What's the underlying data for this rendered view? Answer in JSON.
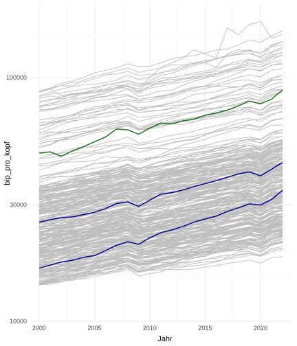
{
  "chart_data": {
    "type": "line",
    "xlabel": "Jahr",
    "ylabel": "bip_pro_kopf",
    "x_scale": "linear",
    "y_scale": "log",
    "xlim": [
      1999.2,
      2022.8
    ],
    "ylim": [
      10000,
      200000
    ],
    "x_ticks": [
      2000,
      2005,
      2010,
      2015,
      2020
    ],
    "x_tick_labels": [
      "2000",
      "2005",
      "2010",
      "2015",
      "2020"
    ],
    "y_ticks": [
      10000,
      30000,
      100000
    ],
    "y_tick_labels": [
      "10000",
      "30000",
      "100000"
    ],
    "grid": true,
    "legend": "none",
    "background_series_color": "#bebebe",
    "background_series_count": 300,
    "background_series_range": {
      "start_2000": [
        12800,
        88000
      ],
      "end_2022": [
        18000,
        140000
      ]
    },
    "series": [
      {
        "color": "#1f6f1f",
        "x": [
          2000,
          2001,
          2002,
          2003,
          2004,
          2005,
          2006,
          2007,
          2008,
          2009,
          2010,
          2011,
          2012,
          2013,
          2014,
          2015,
          2016,
          2017,
          2018,
          2019,
          2020,
          2021,
          2022
        ],
        "values": [
          49000,
          49500,
          47500,
          50000,
          52000,
          54500,
          57000,
          61500,
          61000,
          58500,
          62000,
          65000,
          64500,
          66500,
          67500,
          70000,
          71500,
          73500,
          76500,
          80000,
          78000,
          81500,
          89000
        ]
      },
      {
        "color": "#00008b",
        "x": [
          2000,
          2001,
          2002,
          2003,
          2004,
          2005,
          2006,
          2007,
          2008,
          2009,
          2010,
          2011,
          2012,
          2013,
          2014,
          2015,
          2016,
          2017,
          2018,
          2019,
          2020,
          2021,
          2022
        ],
        "values": [
          25500,
          26100,
          26600,
          26800,
          27400,
          28000,
          29000,
          30400,
          30900,
          29600,
          31400,
          33200,
          33700,
          34600,
          35700,
          36700,
          37700,
          39000,
          40200,
          41000,
          39500,
          42100,
          44800
        ]
      },
      {
        "color": "#00008b",
        "x": [
          2000,
          2001,
          2002,
          2003,
          2004,
          2005,
          2006,
          2007,
          2008,
          2009,
          2010,
          2011,
          2012,
          2013,
          2014,
          2015,
          2016,
          2017,
          2018,
          2019,
          2020,
          2021,
          2022
        ],
        "values": [
          16500,
          17000,
          17500,
          17800,
          18300,
          18600,
          19500,
          20500,
          21200,
          20700,
          22000,
          23100,
          23700,
          24500,
          25500,
          26300,
          27000,
          28200,
          29200,
          30300,
          30000,
          31600,
          34500
        ]
      }
    ]
  }
}
